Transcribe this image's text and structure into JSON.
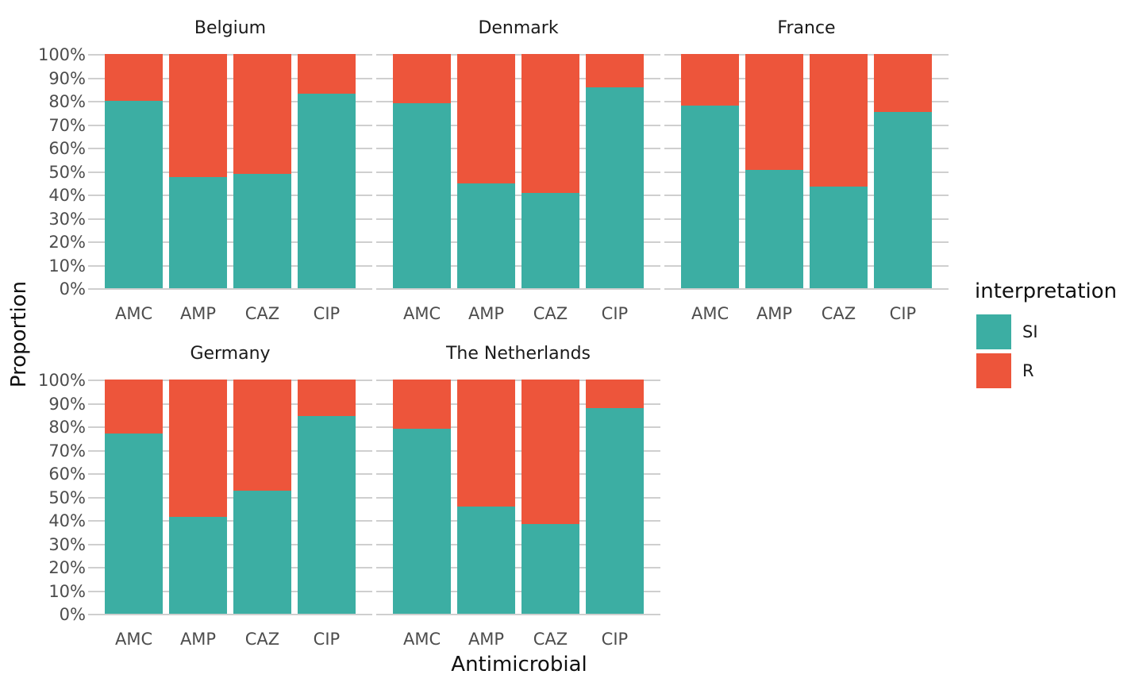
{
  "chart_data": {
    "type": "bar",
    "stacked": true,
    "unit": "percent",
    "facet_by": "country",
    "categories": [
      "AMC",
      "AMP",
      "CAZ",
      "CIP"
    ],
    "facets": [
      {
        "name": "Belgium",
        "series": [
          {
            "name": "SI",
            "values": [
              79.9,
              47.4,
              48.8,
              83.2
            ]
          },
          {
            "name": "R",
            "values": [
              20.1,
              52.6,
              51.2,
              16.8
            ]
          }
        ]
      },
      {
        "name": "Denmark",
        "series": [
          {
            "name": "SI",
            "values": [
              79.1,
              44.6,
              40.7,
              85.9
            ]
          },
          {
            "name": "R",
            "values": [
              20.9,
              55.4,
              59.3,
              14.1
            ]
          }
        ]
      },
      {
        "name": "France",
        "series": [
          {
            "name": "SI",
            "values": [
              78.0,
              50.5,
              43.4,
              75.4
            ]
          },
          {
            "name": "R",
            "values": [
              22.0,
              49.5,
              56.6,
              24.6
            ]
          }
        ]
      },
      {
        "name": "Germany",
        "series": [
          {
            "name": "SI",
            "values": [
              76.8,
              41.5,
              52.6,
              84.3
            ]
          },
          {
            "name": "R",
            "values": [
              23.2,
              58.5,
              47.4,
              15.7
            ]
          }
        ]
      },
      {
        "name": "The Netherlands",
        "series": [
          {
            "name": "SI",
            "values": [
              78.9,
              45.9,
              38.3,
              87.7
            ]
          },
          {
            "name": "R",
            "values": [
              21.1,
              54.1,
              61.7,
              12.3
            ]
          }
        ]
      }
    ],
    "xlabel": "Antimicrobial",
    "ylabel": "Proportion",
    "ylim": [
      0,
      100
    ],
    "y_tick_labels": [
      "100%",
      "90%",
      "80%",
      "70%",
      "60%",
      "50%",
      "40%",
      "30%",
      "20%",
      "10%",
      "0%"
    ],
    "grid": "horizontal",
    "legend": {
      "title": "interpretation",
      "position": "right",
      "entries": [
        {
          "label": "SI",
          "color": "#3CAEA3"
        },
        {
          "label": "R",
          "color": "#ED553B"
        }
      ]
    },
    "colors": {
      "SI": "#3CAEA3",
      "R": "#ED553B",
      "gridline": "#CFCFCF",
      "tick_text": "#4d4d4d",
      "title_text": "#1a1a1a"
    }
  }
}
